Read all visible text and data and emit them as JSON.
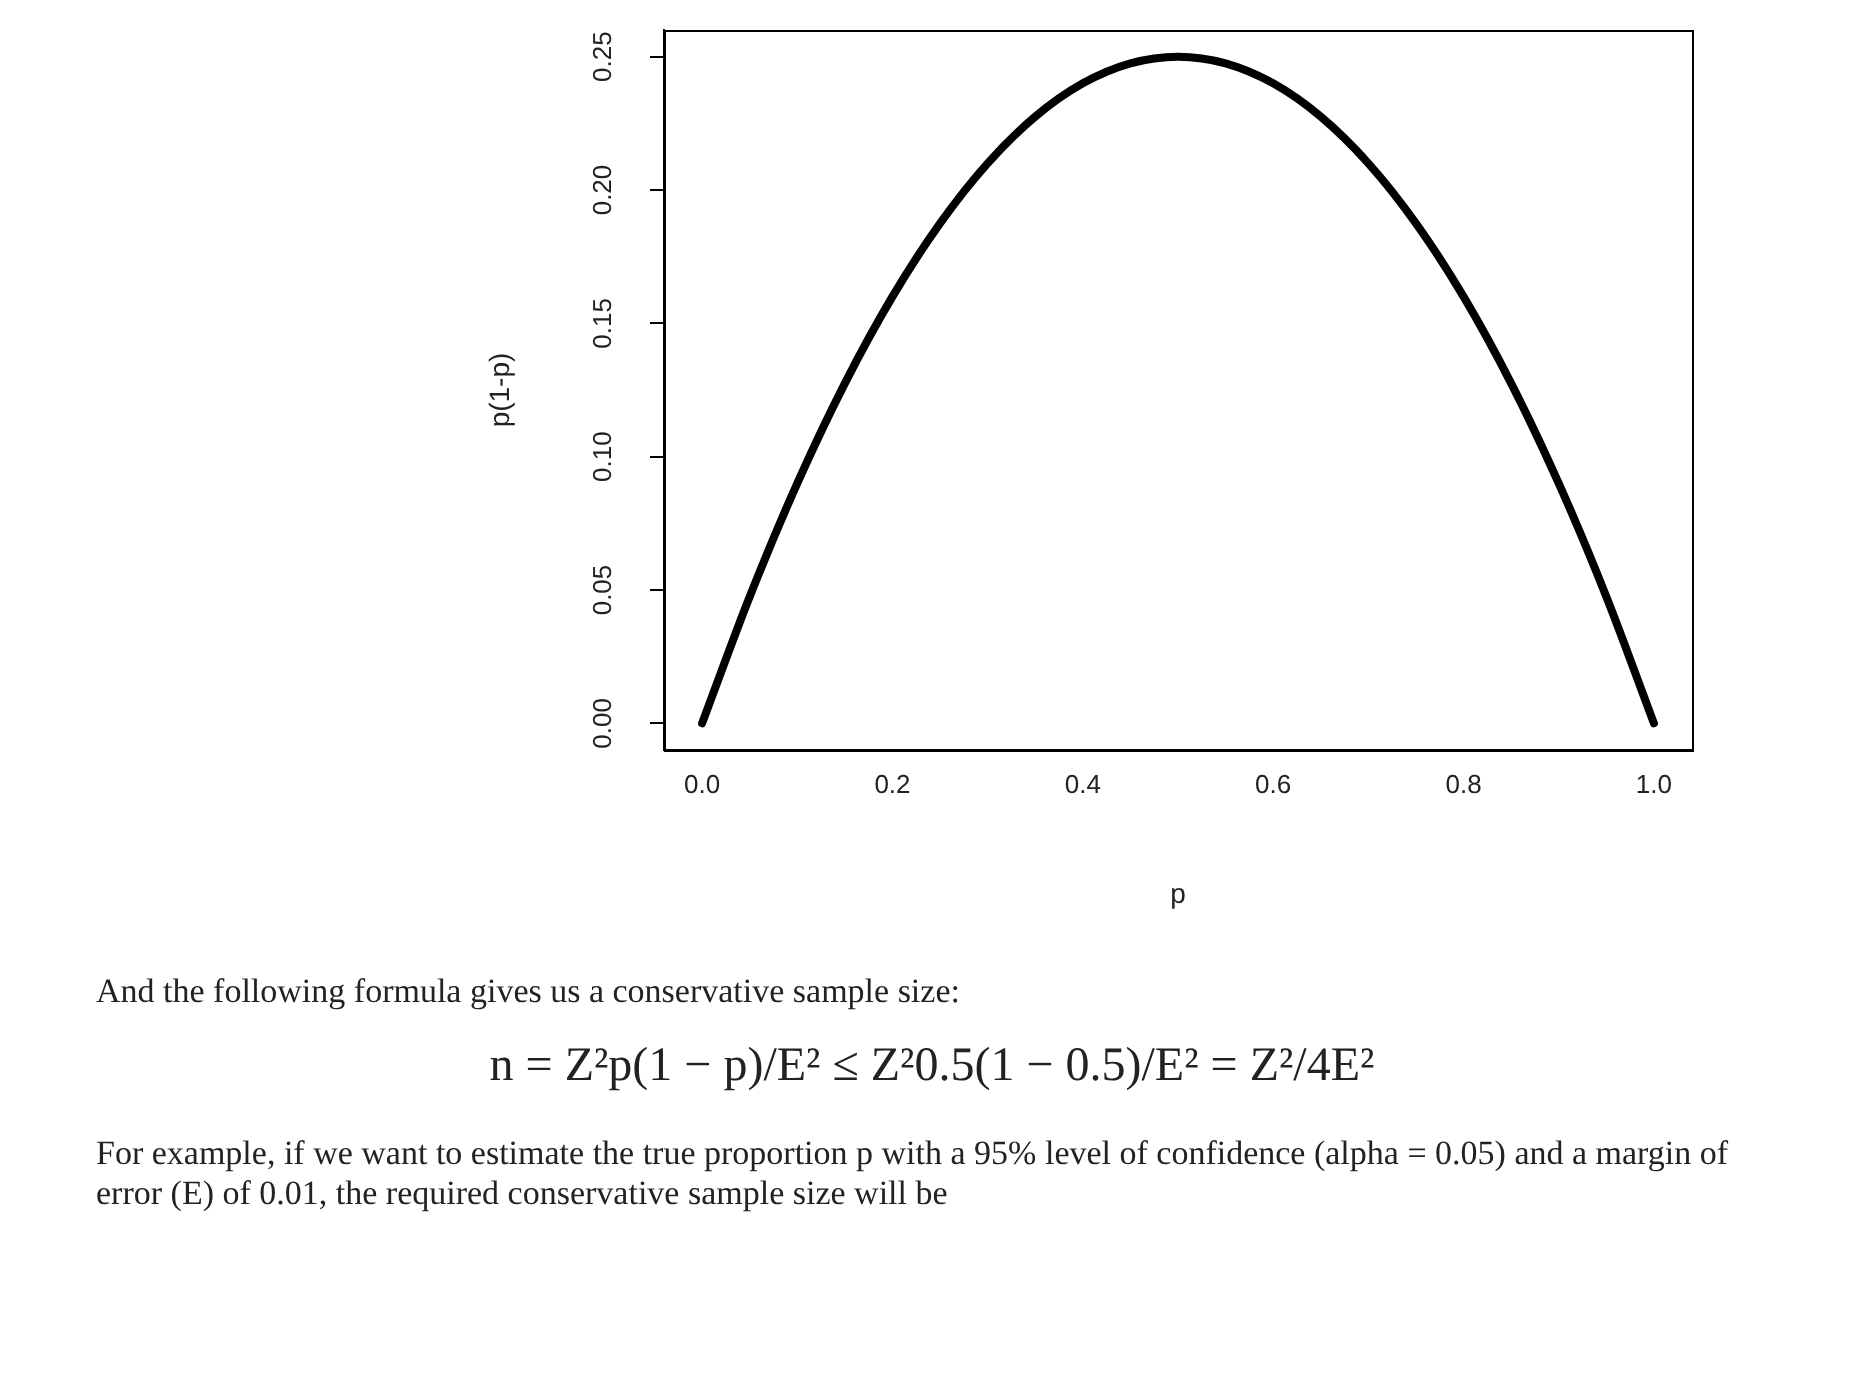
{
  "chart_data": {
    "type": "line",
    "xlabel": "p",
    "ylabel": "p(1-p)",
    "x": [
      0,
      0.05,
      0.1,
      0.15,
      0.2,
      0.25,
      0.3,
      0.35,
      0.4,
      0.45,
      0.5,
      0.55,
      0.6,
      0.65,
      0.7,
      0.75,
      0.8,
      0.85,
      0.9,
      0.95,
      1
    ],
    "series": [
      {
        "color": "#000000",
        "values": [
          0,
          0.0475,
          0.09,
          0.1275,
          0.16,
          0.1875,
          0.21,
          0.2275,
          0.24,
          0.2475,
          0.25,
          0.2475,
          0.24,
          0.2275,
          0.21,
          0.1875,
          0.16,
          0.1275,
          0.09,
          0.0475,
          0
        ]
      }
    ],
    "xlim": [
      -0.04,
      1.04
    ],
    "ylim": [
      -0.01,
      0.26
    ],
    "xticks": [
      {
        "value": 0,
        "label": "0.0"
      },
      {
        "value": 0.2,
        "label": "0.2"
      },
      {
        "value": 0.4,
        "label": "0.4"
      },
      {
        "value": 0.6,
        "label": "0.6"
      },
      {
        "value": 0.8,
        "label": "0.8"
      },
      {
        "value": 1,
        "label": "1.0"
      }
    ],
    "yticks": [
      {
        "value": 0,
        "label": "0.00"
      },
      {
        "value": 0.05,
        "label": "0.05"
      },
      {
        "value": 0.1,
        "label": "0.10"
      },
      {
        "value": 0.15,
        "label": "0.15"
      },
      {
        "value": 0.2,
        "label": "0.20"
      },
      {
        "value": 0.25,
        "label": "0.25"
      }
    ],
    "marker": "none",
    "line_style": "solid",
    "annotations": [
      "And the following formula gives us a conservative sample size:",
      "n = Z²p(1 − p)/E² ≤ Z²0.5(1 − 0.5)/E² = Z²/4E²",
      "For example, if we want to estimate the true proportion p with a 95% level of confidence (alpha = 0.05) and a margin of error (E) of 0.01, the required conservative sample size will be"
    ]
  }
}
